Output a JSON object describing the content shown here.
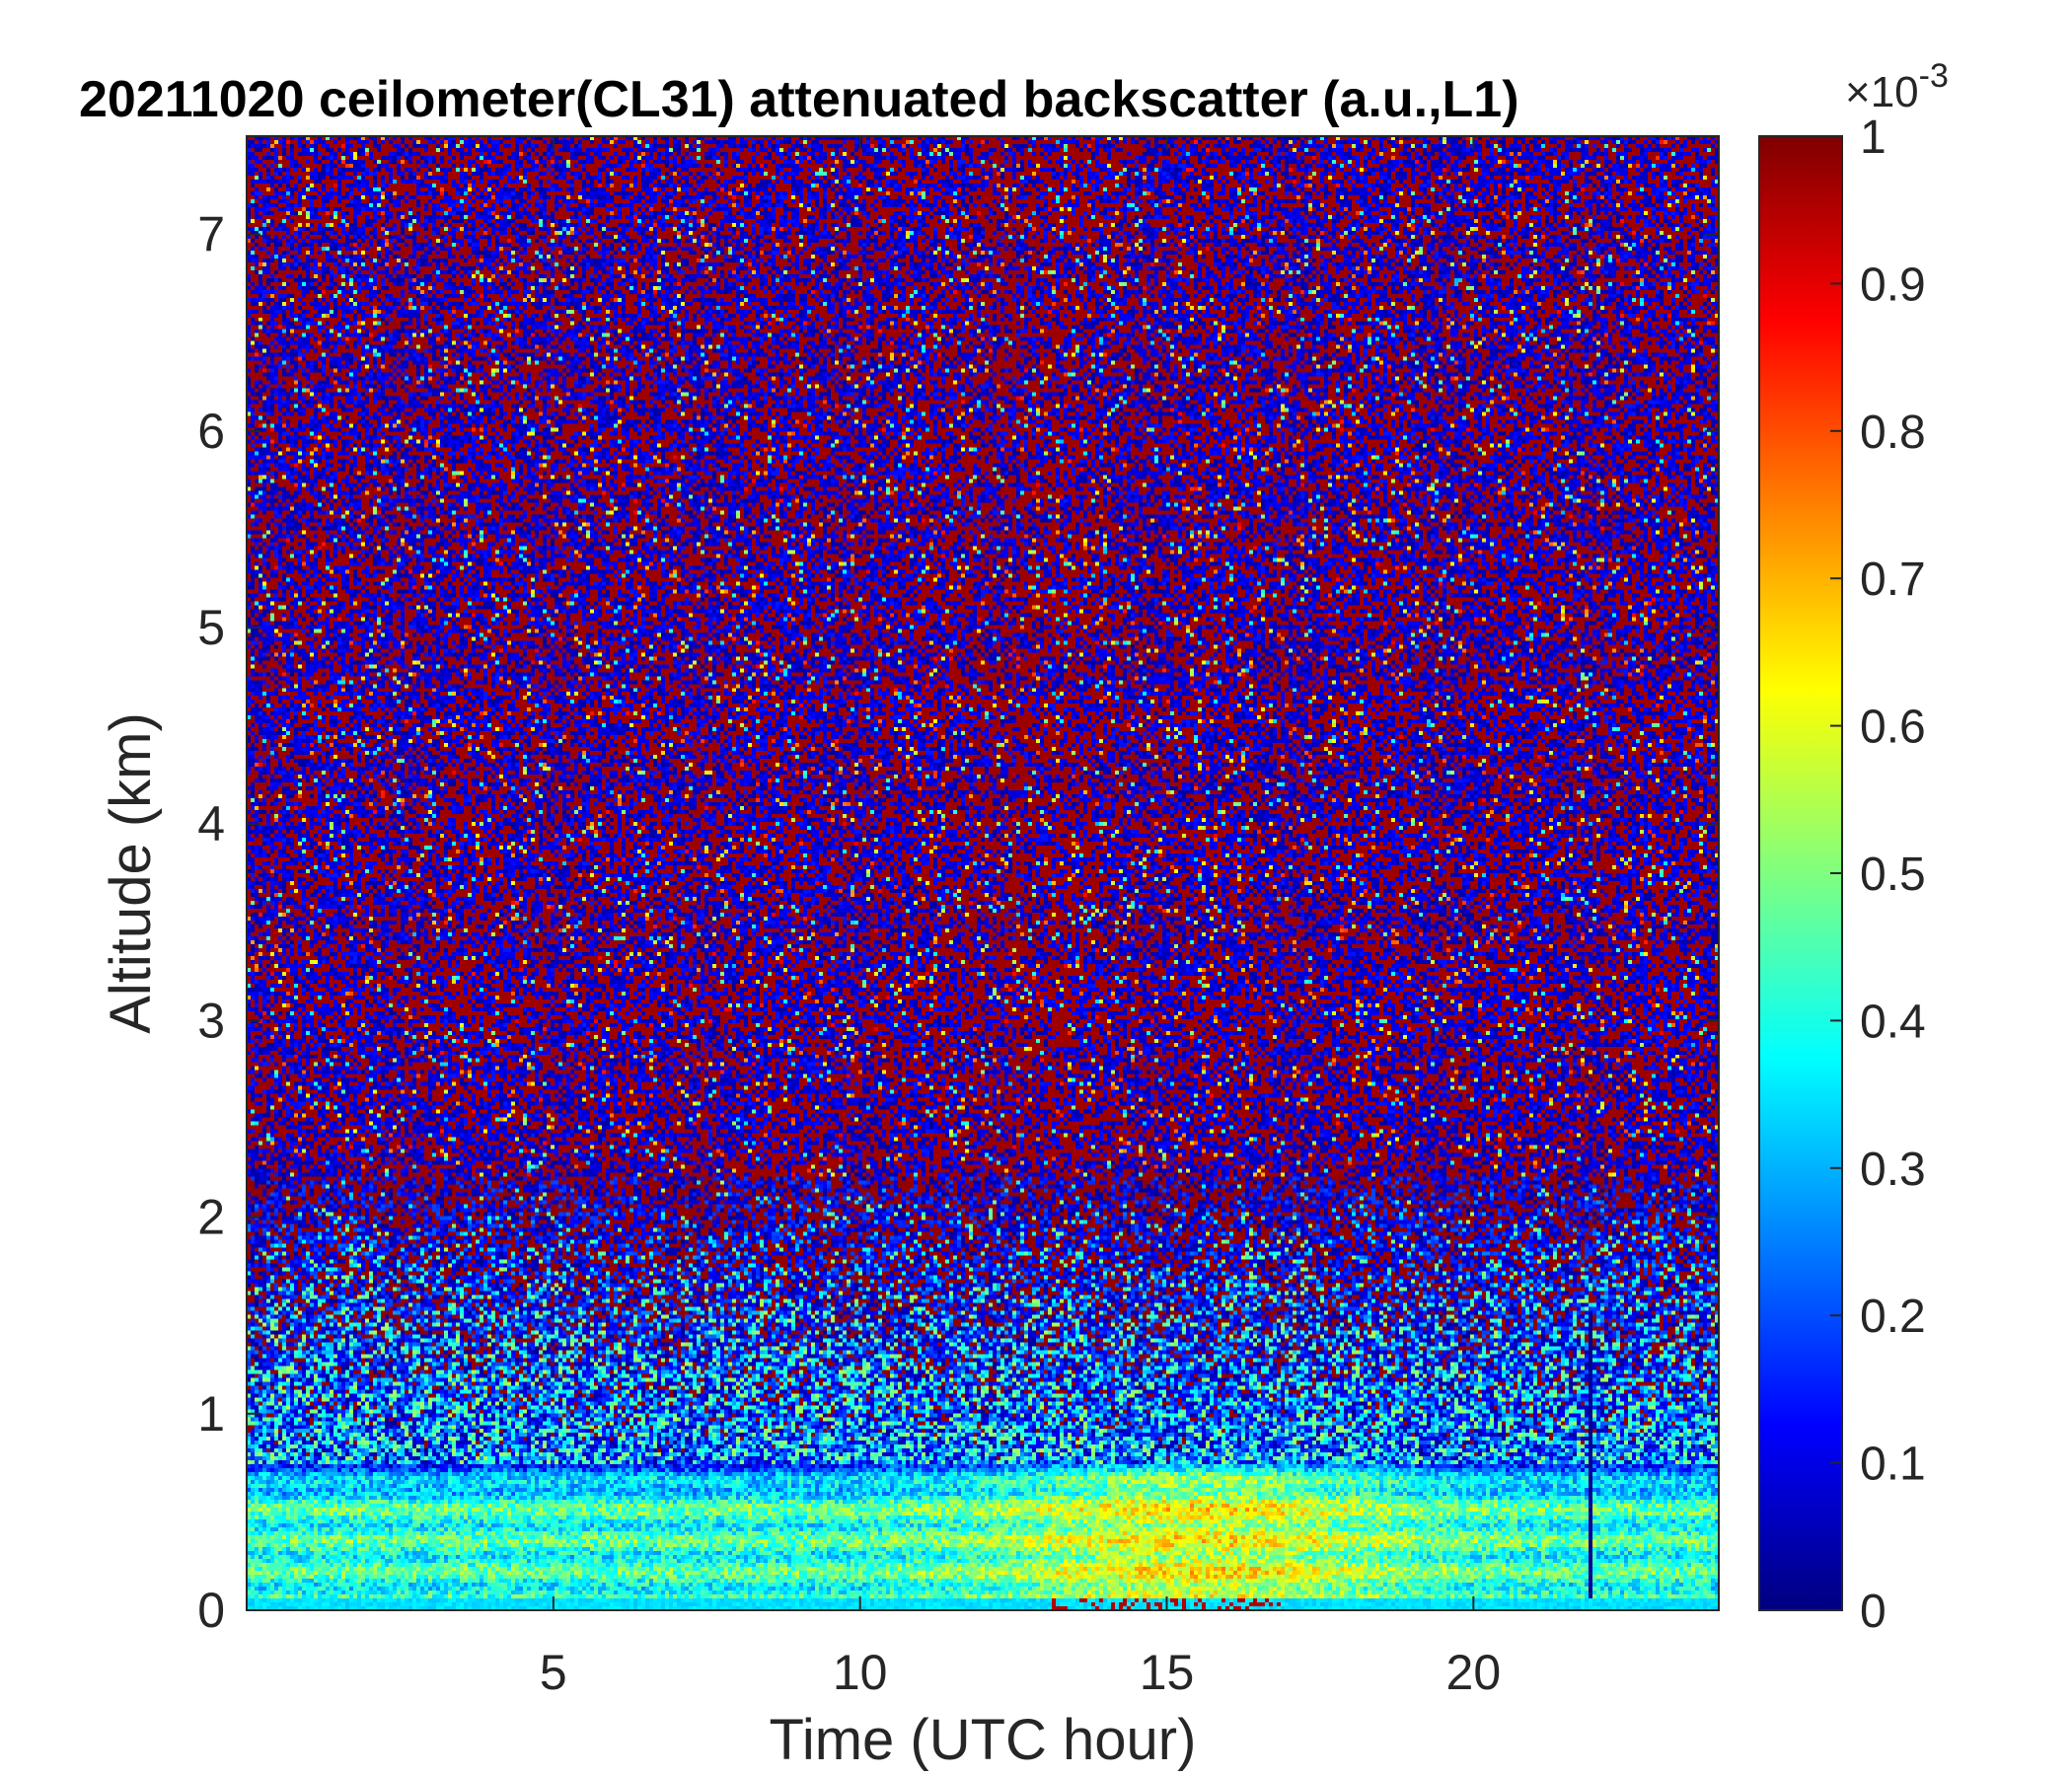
{
  "chart_data": {
    "type": "heatmap",
    "title": "20211020 ceilometer(CL31) attenuated backscatter (a.u.,L1)",
    "xlabel": "Time (UTC hour)",
    "ylabel": "Altitude (km)",
    "xlim": [
      0,
      24
    ],
    "ylim": [
      0,
      7.5
    ],
    "xticks": [
      5,
      10,
      15,
      20
    ],
    "yticks": [
      0,
      1,
      2,
      3,
      4,
      5,
      6,
      7
    ],
    "colorbar": {
      "colormap": "jet",
      "clim": [
        0,
        1
      ],
      "ticks": [
        0,
        0.1,
        0.2,
        0.3,
        0.4,
        0.5,
        0.6,
        0.7,
        0.8,
        0.9,
        1
      ],
      "ticklabels": [
        "0",
        "0.1",
        "0.2",
        "0.3",
        "0.4",
        "0.5",
        "0.6",
        "0.7",
        "0.8",
        "0.9",
        "1"
      ],
      "exponent_label": "×10",
      "exponent": "-3"
    },
    "layers": [
      {
        "altitude_km": 0.5,
        "value": 0.5
      },
      {
        "altitude_km": 0.3,
        "value": 0.45
      }
    ]
  }
}
